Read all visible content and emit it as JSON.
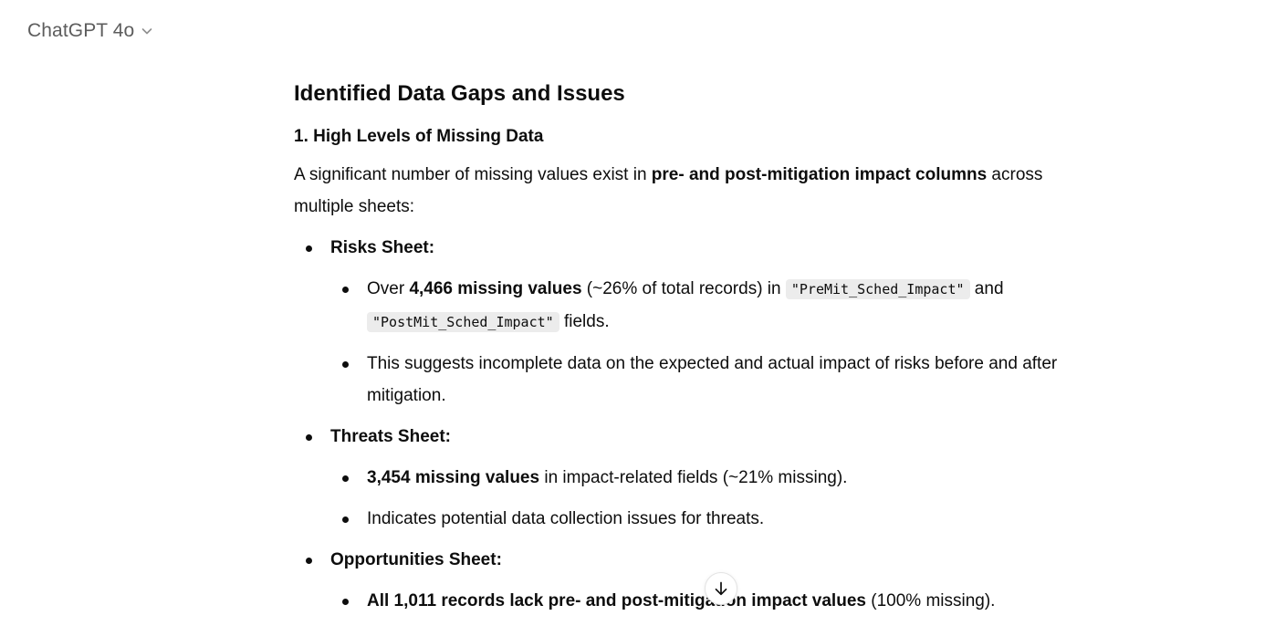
{
  "header": {
    "model_name": "ChatGPT 4o",
    "dropdown_icon": "chevron-down-icon"
  },
  "message": {
    "title": "Identified Data Gaps and Issues",
    "subtitle": "1. High Levels of Missing Data",
    "intro": {
      "pre": "A significant number of missing values exist in ",
      "bold": "pre- and post-mitigation impact columns",
      "post": " across multiple sheets:"
    },
    "risks": {
      "label": "Risks Sheet:",
      "item1": {
        "pre": "Over ",
        "bold": "4,466 missing values",
        "mid": " (~26% of total records) in ",
        "code1": "\"PreMit_Sched_Impact\"",
        "and": " and ",
        "code2": "\"PostMit_Sched_Impact\"",
        "post": " fields."
      },
      "item2": "This suggests incomplete data on the expected and actual impact of risks before and after mitigation."
    },
    "threats": {
      "label": "Threats Sheet:",
      "item1": {
        "bold": "3,454 missing values",
        "post": " in impact-related fields (~21% missing)."
      },
      "item2": "Indicates potential data collection issues for threats."
    },
    "opportunities": {
      "label": "Opportunities Sheet:",
      "item1": {
        "bold": "All 1,011 records lack pre- and post-mitigation impact values",
        "post": " (100% missing)."
      }
    }
  },
  "scroll_button": {
    "icon": "arrow-down-icon"
  }
}
